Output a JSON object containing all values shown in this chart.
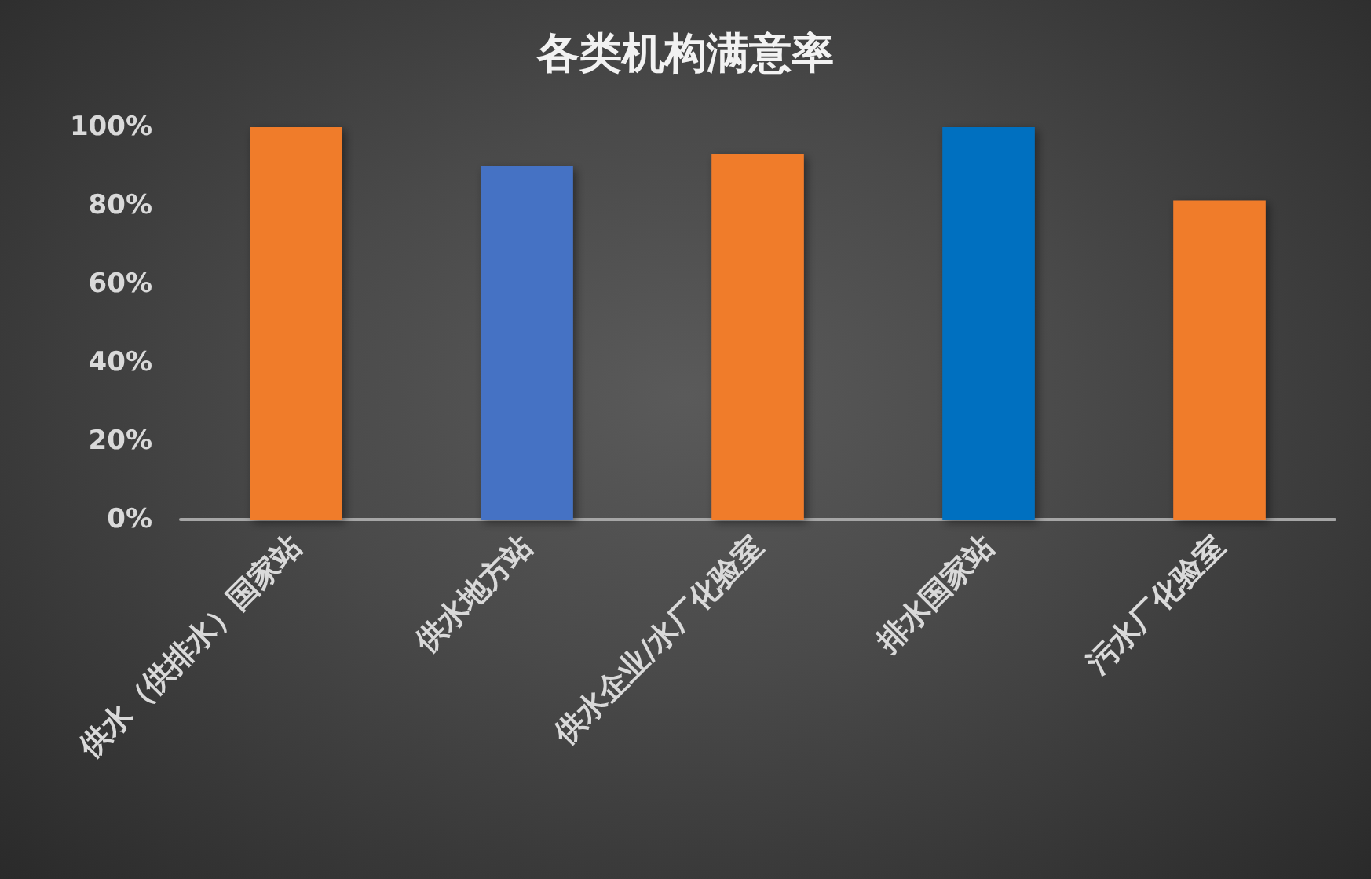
{
  "chart_data": {
    "type": "bar",
    "title": "各类机构满意率",
    "categories": [
      "供水（供排水）国家站",
      "供水地方站",
      "供水企业/水厂化验室",
      "排水国家站",
      "污水厂化验室"
    ],
    "values": [
      100,
      90,
      93.2,
      100,
      81.3
    ],
    "colors": [
      "#f07b2a",
      "#4472c4",
      "#f07b2a",
      "#0070c0",
      "#f07b2a"
    ],
    "ylim": [
      0,
      100
    ],
    "yticks": [
      {
        "value": 0,
        "label": "0%"
      },
      {
        "value": 20,
        "label": "20%"
      },
      {
        "value": 40,
        "label": "40%"
      },
      {
        "value": 60,
        "label": "60%"
      },
      {
        "value": 80,
        "label": "80%"
      },
      {
        "value": 100,
        "label": "100%"
      }
    ],
    "grid": false
  }
}
